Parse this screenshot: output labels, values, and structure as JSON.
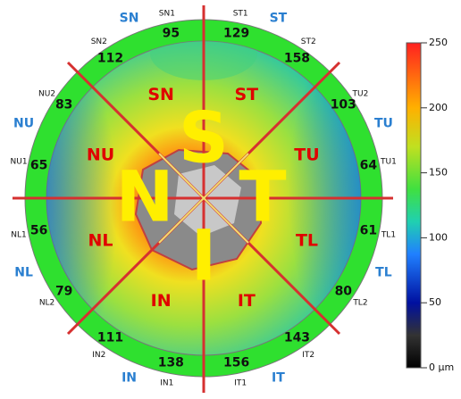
{
  "map": {
    "sectors": [
      {
        "name": "SN1",
        "value": 95
      },
      {
        "name": "ST1",
        "value": 129
      },
      {
        "name": "ST2",
        "value": 158
      },
      {
        "name": "TU2",
        "value": 103
      },
      {
        "name": "TU1",
        "value": 64
      },
      {
        "name": "TL1",
        "value": 61
      },
      {
        "name": "TL2",
        "value": 80
      },
      {
        "name": "IT2",
        "value": 143
      },
      {
        "name": "IT1",
        "value": 156
      },
      {
        "name": "IN1",
        "value": 138
      },
      {
        "name": "IN2",
        "value": 111
      },
      {
        "name": "NL2",
        "value": 79
      },
      {
        "name": "NL1",
        "value": 56
      },
      {
        "name": "NU1",
        "value": 65
      },
      {
        "name": "NU2",
        "value": 83
      },
      {
        "name": "SN2",
        "value": 112
      }
    ],
    "outer_labels": [
      "SN",
      "ST",
      "TU",
      "TL",
      "IT",
      "IN",
      "NL",
      "NU"
    ],
    "inner_labels": [
      "SN",
      "ST",
      "TU",
      "TL",
      "IT",
      "IN",
      "NL",
      "NU"
    ],
    "quadrant_letters": [
      "S",
      "T",
      "I",
      "N"
    ]
  },
  "colorbar": {
    "range": [
      0,
      250
    ],
    "ticks": [
      {
        "value": 0,
        "label": "0 µm"
      },
      50,
      100,
      150,
      200,
      250
    ]
  }
}
